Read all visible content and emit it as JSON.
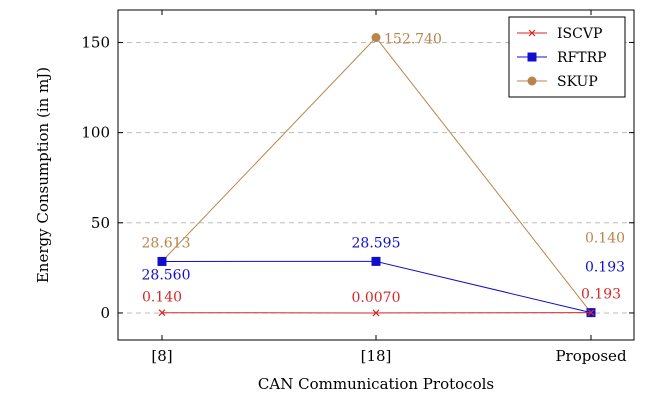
{
  "chart_data": {
    "type": "line",
    "title": "",
    "xlabel": "CAN Communication Protocols",
    "ylabel": "Energy Consumption (in mJ)",
    "categories": [
      "[8]",
      "[18]",
      "Proposed"
    ],
    "ylim": [
      -15,
      168
    ],
    "yticks": [
      0,
      50,
      100,
      150
    ],
    "grid": "horizontal-dashed",
    "legend_position": "top-right",
    "series": [
      {
        "name": "ISCVP",
        "color": "#d62728",
        "marker": "x",
        "values": [
          0.14,
          0.007,
          0.193
        ],
        "labels": [
          "0.140",
          "0.0070",
          "0.193"
        ]
      },
      {
        "name": "RFTRP",
        "color": "#1010cc",
        "marker": "square",
        "values": [
          28.56,
          28.595,
          0.193
        ],
        "labels": [
          "28.560",
          "28.595",
          "0.193"
        ]
      },
      {
        "name": "SKUP",
        "color": "#b8864b",
        "marker": "circle",
        "values": [
          28.613,
          152.74,
          0.14
        ],
        "labels": [
          "28.613",
          "152.740",
          "0.140"
        ]
      }
    ]
  }
}
